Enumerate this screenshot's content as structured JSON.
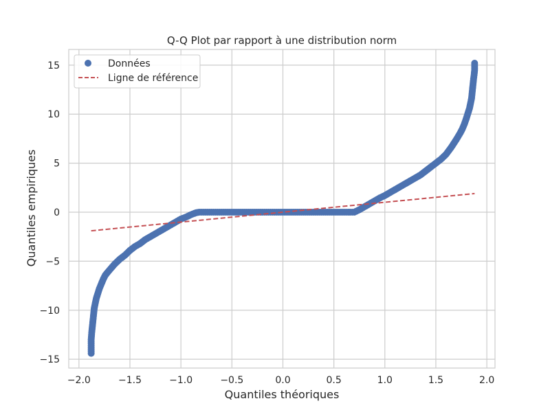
{
  "chart_data": {
    "type": "scatter",
    "title": "Q-Q Plot par rapport à une distribution norm",
    "xlabel": "Quantiles théoriques",
    "ylabel": "Quantiles empiriques",
    "xlim": [
      -2.1,
      2.08
    ],
    "ylim": [
      -15.9,
      16.6
    ],
    "xticks": [
      -2.0,
      -1.5,
      -1.0,
      -0.5,
      0.0,
      0.5,
      1.0,
      1.5,
      2.0
    ],
    "xtick_labels": [
      "−2.0",
      "−1.5",
      "−1.0",
      "−0.5",
      "0.0",
      "0.5",
      "1.0",
      "1.5",
      "2.0"
    ],
    "yticks": [
      -15,
      -10,
      -5,
      0,
      5,
      10,
      15
    ],
    "ytick_labels": [
      "−15",
      "−10",
      "−5",
      "0",
      "5",
      "10",
      "15"
    ],
    "grid": true,
    "legend_position": "top-left",
    "colors": {
      "data": "#4c72b0",
      "reference": "#c44e52",
      "grid": "#cccccc",
      "frame": "#cccccc"
    },
    "series": [
      {
        "name": "Données",
        "kind": "points",
        "x": [
          -1.88,
          -1.88,
          -1.88,
          -1.875,
          -1.87,
          -1.865,
          -1.86,
          -1.855,
          -1.85,
          -1.84,
          -1.83,
          -1.815,
          -1.8,
          -1.78,
          -1.76,
          -1.74,
          -1.7,
          -1.65,
          -1.6,
          -1.55,
          -1.5,
          -1.45,
          -1.4,
          -1.35,
          -1.3,
          -1.25,
          -1.2,
          -1.15,
          -1.1,
          -1.05,
          -1.0,
          -0.95,
          -0.9,
          -0.85,
          -0.82,
          -0.8,
          -0.7,
          -0.6,
          -0.5,
          -0.4,
          -0.3,
          -0.2,
          -0.1,
          0.0,
          0.1,
          0.2,
          0.3,
          0.4,
          0.5,
          0.6,
          0.7,
          0.75,
          0.8,
          0.85,
          0.9,
          0.95,
          1.0,
          1.05,
          1.1,
          1.15,
          1.2,
          1.25,
          1.3,
          1.35,
          1.4,
          1.45,
          1.5,
          1.55,
          1.6,
          1.65,
          1.7,
          1.74,
          1.76,
          1.78,
          1.8,
          1.815,
          1.83,
          1.84,
          1.85,
          1.855,
          1.86,
          1.865,
          1.87,
          1.875,
          1.88,
          1.88,
          1.88
        ],
        "y": [
          -14.4,
          -14.0,
          -13.0,
          -12.3,
          -11.8,
          -11.3,
          -10.8,
          -10.3,
          -9.8,
          -9.3,
          -8.8,
          -8.3,
          -7.8,
          -7.3,
          -6.8,
          -6.4,
          -5.9,
          -5.3,
          -4.8,
          -4.4,
          -3.9,
          -3.5,
          -3.2,
          -2.8,
          -2.5,
          -2.2,
          -1.9,
          -1.6,
          -1.3,
          -1.0,
          -0.7,
          -0.5,
          -0.25,
          -0.05,
          0.0,
          0.0,
          0.0,
          0.0,
          0.0,
          0.0,
          0.0,
          0.0,
          0.0,
          0.0,
          0.0,
          0.0,
          0.0,
          0.0,
          0.0,
          0.0,
          0.0,
          0.25,
          0.55,
          0.85,
          1.15,
          1.45,
          1.7,
          2.0,
          2.3,
          2.6,
          2.9,
          3.2,
          3.5,
          3.8,
          4.2,
          4.6,
          5.0,
          5.4,
          5.9,
          6.6,
          7.4,
          8.1,
          8.5,
          9.0,
          9.6,
          10.1,
          10.6,
          11.1,
          11.6,
          12.1,
          12.6,
          13.1,
          13.6,
          14.0,
          14.5,
          15.0,
          15.2
        ]
      },
      {
        "name": "Ligne de référence",
        "kind": "dashed-line",
        "x": [
          -1.88,
          1.88
        ],
        "y": [
          -1.9,
          1.9
        ]
      }
    ]
  }
}
